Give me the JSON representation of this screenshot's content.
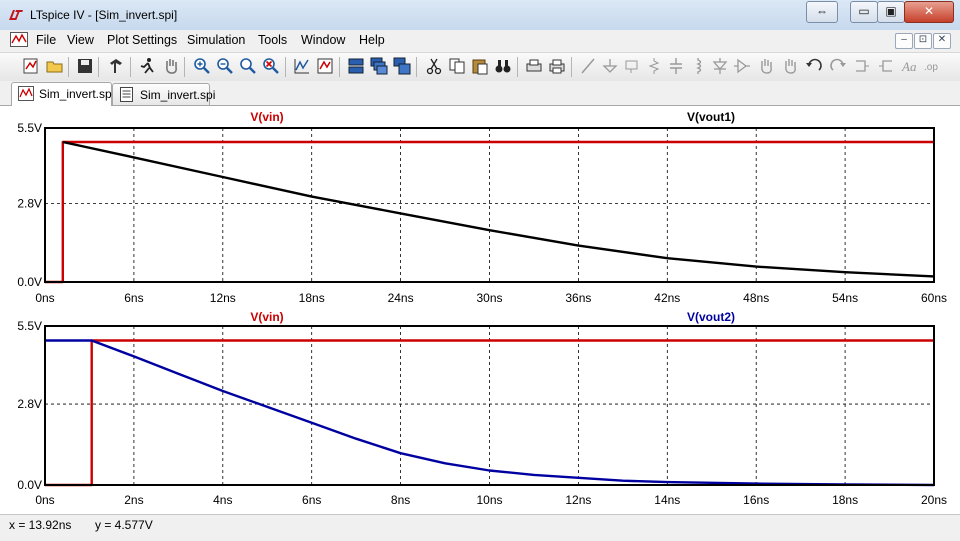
{
  "window": {
    "title": "LTspice IV - [Sim_invert.spi]",
    "restore_label": "⇔",
    "minimize_label": "▭",
    "maximize_label": "▣",
    "close_label": "✕"
  },
  "menu": {
    "items": [
      "File",
      "View",
      "Plot Settings",
      "Simulation",
      "Tools",
      "Window",
      "Help"
    ],
    "mdi_minimize": "–",
    "mdi_restore": "⊡",
    "mdi_close": "✕"
  },
  "toolbar": {
    "icons": [
      "new-schematic-icon",
      "open-icon",
      "save-icon",
      "control-panel-icon",
      "run-icon",
      "halt-icon",
      "zoom-in-icon",
      "zoom-out-icon",
      "zoom-fit-icon",
      "zoom-cancel-icon",
      "autorange-icon",
      "marker-icon",
      "tile-horizontal-icon",
      "cascade-icon",
      "tile-vertical-icon",
      "cut-icon",
      "copy-icon",
      "paste-icon",
      "find-icon",
      "print-setup-icon",
      "print-icon",
      "wire-icon",
      "ground-icon",
      "label-icon",
      "resistor-icon",
      "capacitor-icon",
      "inductor-icon",
      "diode-icon",
      "component-icon",
      "move-icon",
      "drag-icon",
      "undo-icon",
      "redo-icon",
      "rotate-icon",
      "mirror-icon",
      "text-icon",
      "spice-directive-icon"
    ]
  },
  "tabs": [
    {
      "label": "Sim_invert.spi",
      "icon": "waveform-icon",
      "active": true
    },
    {
      "label": "Sim_invert.spi",
      "icon": "netlist-icon",
      "active": false
    }
  ],
  "chart_data": [
    {
      "type": "line",
      "title": "",
      "xlabel": "",
      "ylabel": "",
      "xlim": [
        0,
        60
      ],
      "ylim": [
        0,
        5.5
      ],
      "x_unit": "ns",
      "x_ticks": [
        "0ns",
        "6ns",
        "12ns",
        "18ns",
        "24ns",
        "30ns",
        "36ns",
        "42ns",
        "48ns",
        "54ns",
        "60ns"
      ],
      "y_ticks": [
        "0.0V",
        "2.8V",
        "5.5V"
      ],
      "y_tick_values": [
        0,
        2.8,
        5.5
      ],
      "grid": true,
      "series": [
        {
          "name": "V(vin)",
          "color": "#cc0000",
          "x": [
            0,
            1.2,
            1.2,
            60
          ],
          "y": [
            0,
            0,
            5,
            5
          ]
        },
        {
          "name": "V(vout1)",
          "color": "#000000",
          "x": [
            1.2,
            6,
            12,
            18,
            24,
            30,
            36,
            42,
            48,
            54,
            60
          ],
          "y": [
            5.0,
            4.45,
            3.75,
            3.05,
            2.45,
            1.85,
            1.3,
            0.85,
            0.55,
            0.35,
            0.2
          ]
        }
      ]
    },
    {
      "type": "line",
      "title": "",
      "xlabel": "",
      "ylabel": "",
      "xlim": [
        0,
        20
      ],
      "ylim": [
        0,
        5.5
      ],
      "x_unit": "ns",
      "x_ticks": [
        "0ns",
        "2ns",
        "4ns",
        "6ns",
        "8ns",
        "10ns",
        "12ns",
        "14ns",
        "16ns",
        "18ns",
        "20ns"
      ],
      "y_ticks": [
        "0.0V",
        "2.8V",
        "5.5V"
      ],
      "y_tick_values": [
        0,
        2.8,
        5.5
      ],
      "grid": true,
      "series": [
        {
          "name": "V(vin)",
          "color": "#cc0000",
          "x": [
            0,
            1.05,
            1.05,
            20
          ],
          "y": [
            0,
            0,
            5,
            5
          ]
        },
        {
          "name": "V(vout2)",
          "color": "#0000a0",
          "x": [
            0,
            1.05,
            2,
            3,
            4,
            5,
            6,
            7,
            8,
            9,
            10,
            11,
            12,
            13,
            14,
            16,
            18,
            20
          ],
          "y": [
            5.0,
            5.0,
            4.45,
            3.85,
            3.25,
            2.7,
            2.15,
            1.6,
            1.1,
            0.75,
            0.5,
            0.35,
            0.25,
            0.15,
            0.1,
            0.05,
            0.02,
            0.0
          ]
        }
      ]
    }
  ],
  "status": {
    "x_readout": "x = 13.92ns",
    "y_readout": "y = 4.577V"
  }
}
